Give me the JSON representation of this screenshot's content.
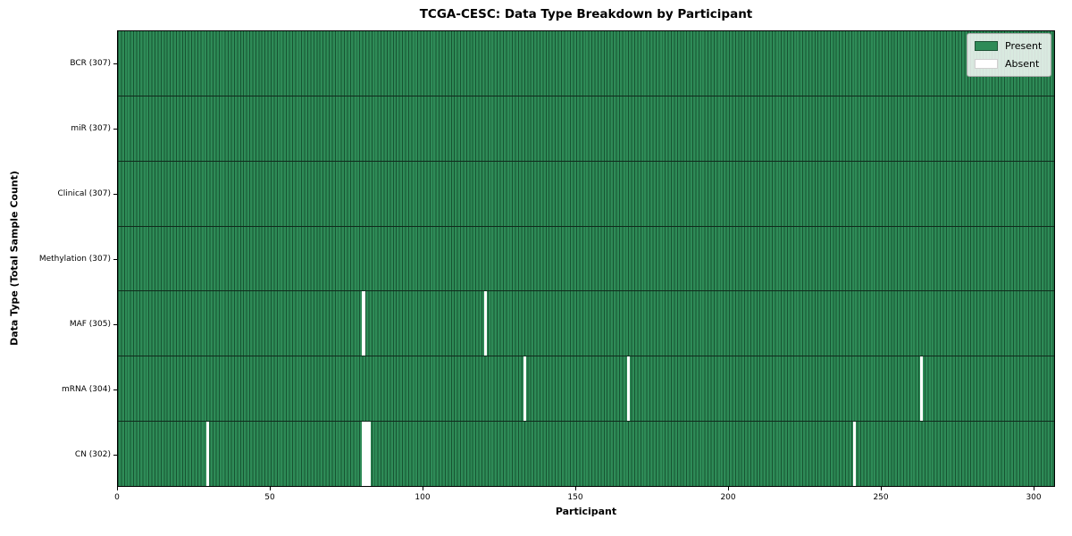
{
  "title": "TCGA-CESC: Data Type Breakdown by Participant",
  "xlabel": "Participant",
  "ylabel": "Data Type (Total Sample Count)",
  "legend": {
    "present_label": "Present",
    "absent_label": "Absent"
  },
  "colors": {
    "present": "#2e8b57",
    "present_gridline": "#175432",
    "absent": "#ffffff",
    "row_separator": "#102a1c"
  },
  "chart_data": {
    "type": "heatmap",
    "title": "TCGA-CESC: Data Type Breakdown by Participant",
    "xlabel": "Participant",
    "ylabel": "Data Type (Total Sample Count)",
    "legend_entries": [
      "Present",
      "Absent"
    ],
    "legend_position": "upper right",
    "n_participants": 307,
    "x_range": [
      0,
      307
    ],
    "x_ticks": [
      0,
      50,
      100,
      150,
      200,
      250,
      300
    ],
    "grid": "cell-edges",
    "rows": [
      {
        "name": "bcr",
        "label": "BCR (307)",
        "total": 307,
        "absent_participants": []
      },
      {
        "name": "mir",
        "label": "miR (307)",
        "total": 307,
        "absent_participants": []
      },
      {
        "name": "clinical",
        "label": "Clinical (307)",
        "total": 307,
        "absent_participants": []
      },
      {
        "name": "methylation",
        "label": "Methylation (307)",
        "total": 307,
        "absent_participants": []
      },
      {
        "name": "maf",
        "label": "MAF (305)",
        "total": 305,
        "absent_participants": [
          80,
          120
        ]
      },
      {
        "name": "mrna",
        "label": "mRNA (304)",
        "total": 304,
        "absent_participants": [
          133,
          167,
          263
        ]
      },
      {
        "name": "cn",
        "label": "CN (302)",
        "total": 302,
        "absent_participants": [
          29,
          80,
          81,
          82,
          241
        ]
      }
    ]
  }
}
